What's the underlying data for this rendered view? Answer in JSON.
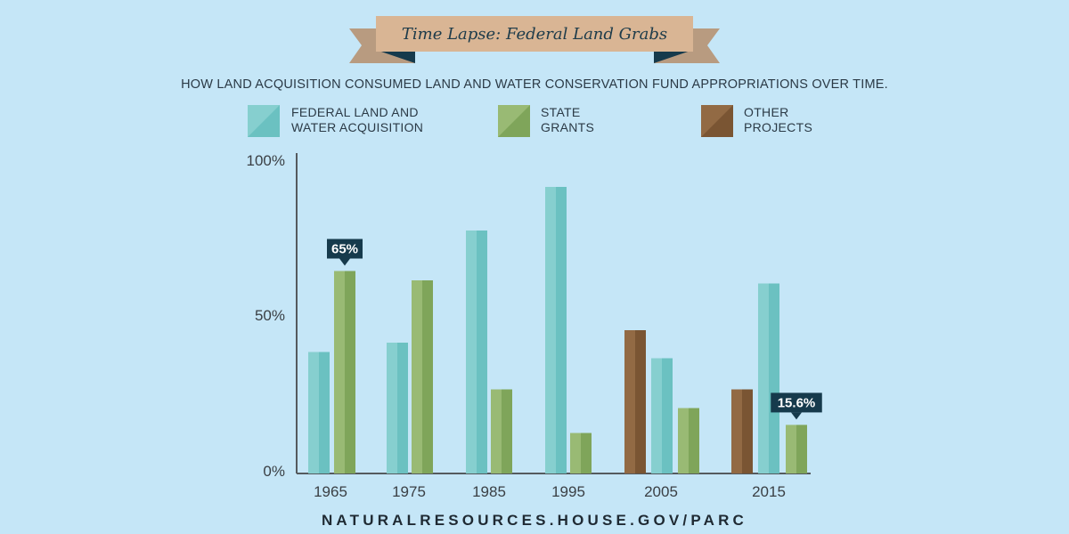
{
  "banner": {
    "title": "Time Lapse: Federal Land Grabs"
  },
  "subtitle": "HOW LAND ACQUISITION CONSUMED LAND AND WATER CONSERVATION FUND APPROPRIATIONS OVER TIME.",
  "legend": [
    {
      "key": "federal",
      "lines": [
        "FEDERAL LAND AND",
        "WATER ACQUISITION"
      ]
    },
    {
      "key": "state",
      "lines": [
        "STATE",
        "GRANTS"
      ]
    },
    {
      "key": "other",
      "lines": [
        "OTHER",
        "PROJECTS"
      ]
    }
  ],
  "colors": {
    "background": "#c5e6f7",
    "banner": "#d9b594",
    "banner_dark": "#163a4c",
    "federal": "#6bc1c1",
    "federal_light": "#86cfcf",
    "state": "#7fa55a",
    "state_light": "#99ba74",
    "other": "#7a5533",
    "other_light": "#926a44",
    "callout": "#163a4c",
    "axis": "#555a5e"
  },
  "chart_data": {
    "type": "bar",
    "categories": [
      "1965",
      "1975",
      "1985",
      "1995",
      "2005",
      "2015"
    ],
    "series": [
      {
        "key": "federal",
        "name": "FEDERAL LAND AND WATER ACQUISITION",
        "values": [
          39,
          42,
          78,
          92,
          37,
          61
        ]
      },
      {
        "key": "state",
        "name": "STATE GRANTS",
        "values": [
          65,
          62,
          27,
          13,
          21,
          15.6
        ]
      },
      {
        "key": "other",
        "name": "OTHER PROJECTS",
        "values": [
          null,
          null,
          null,
          null,
          46,
          27
        ]
      }
    ],
    "yticks": [
      "0%",
      "50%",
      "100%"
    ],
    "ylim": [
      0,
      100
    ],
    "annotations": [
      {
        "category": "1965",
        "series": "state",
        "text": "65%"
      },
      {
        "category": "2015",
        "series": "state",
        "text": "15.6%"
      }
    ],
    "legend_position": "top"
  },
  "footer": {
    "url": "NATURALRESOURCES.HOUSE.GOV/PARC"
  }
}
